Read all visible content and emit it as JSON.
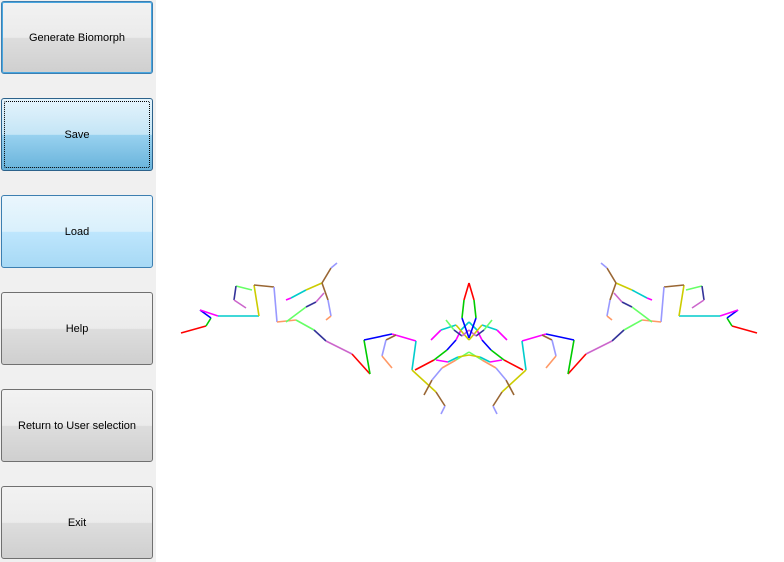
{
  "sidebar": {
    "buttons": [
      {
        "id": "generate",
        "label": "Generate Biomorph"
      },
      {
        "id": "save",
        "label": "Save"
      },
      {
        "id": "load",
        "label": "Load"
      },
      {
        "id": "help",
        "label": "Help"
      },
      {
        "id": "return",
        "label": "Return to User selection"
      },
      {
        "id": "exit",
        "label": "Exit"
      }
    ]
  },
  "canvas": {
    "background": "#ffffff",
    "segment_colors": [
      "#ff0000",
      "#00cc00",
      "#0000ff",
      "#ff00ff",
      "#00cccc",
      "#cccc00",
      "#996633",
      "#9999ff",
      "#ff9966",
      "#66ff66",
      "#333399",
      "#cc66cc"
    ]
  }
}
